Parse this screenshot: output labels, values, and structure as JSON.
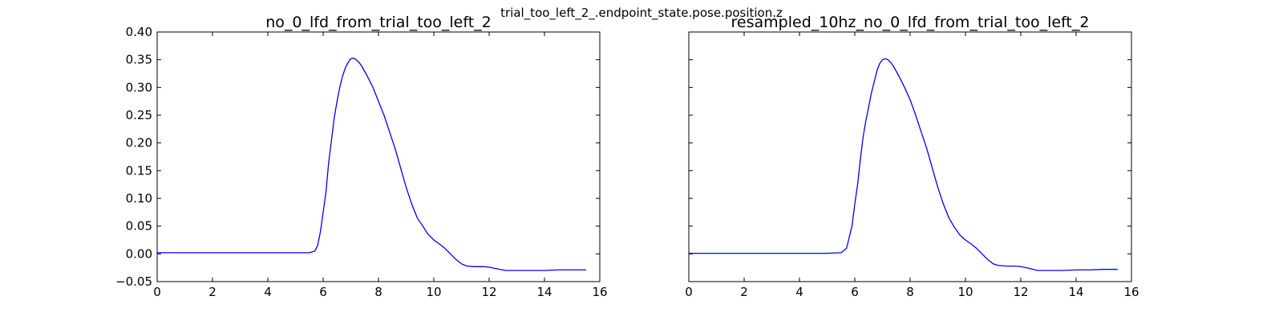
{
  "figure": {
    "suptitle": "trial_too_left_2_.endpoint_state.pose.position.z"
  },
  "chart_data": [
    {
      "type": "line",
      "title": "no_0_lfd_from_trial_too_left_2",
      "xlabel": "",
      "ylabel": "",
      "xlim": [
        0,
        16
      ],
      "ylim": [
        -0.05,
        0.4
      ],
      "xticks": [
        0,
        2,
        4,
        6,
        8,
        10,
        12,
        14,
        16
      ],
      "xtick_labels": [
        "0",
        "2",
        "4",
        "6",
        "8",
        "10",
        "12",
        "14",
        "16"
      ],
      "yticks": [
        -0.05,
        0.0,
        0.05,
        0.1,
        0.15,
        0.2,
        0.25,
        0.3,
        0.35,
        0.4
      ],
      "ytick_labels": [
        "−0.05",
        "0.00",
        "0.05",
        "0.10",
        "0.15",
        "0.20",
        "0.25",
        "0.30",
        "0.35",
        "0.40"
      ],
      "show_ytick_labels": true,
      "grid": false,
      "series": [
        {
          "color": "#0000ff",
          "x": [
            0,
            1,
            2,
            3,
            4,
            5,
            5.5,
            5.7,
            5.8,
            5.9,
            6.0,
            6.1,
            6.2,
            6.3,
            6.4,
            6.5,
            6.6,
            6.7,
            6.8,
            6.9,
            7.0,
            7.1,
            7.2,
            7.3,
            7.4,
            7.6,
            7.8,
            8.0,
            8.2,
            8.4,
            8.6,
            8.8,
            9.0,
            9.2,
            9.4,
            9.6,
            9.8,
            10.0,
            10.2,
            10.4,
            10.6,
            10.8,
            11.0,
            11.2,
            11.5,
            11.8,
            12.0,
            12.3,
            12.6,
            13.0,
            13.5,
            14.0,
            14.5,
            15.0,
            15.5
          ],
          "y": [
            0.002,
            0.002,
            0.002,
            0.002,
            0.002,
            0.002,
            0.002,
            0.005,
            0.015,
            0.04,
            0.075,
            0.11,
            0.165,
            0.205,
            0.245,
            0.275,
            0.3,
            0.32,
            0.335,
            0.345,
            0.352,
            0.353,
            0.35,
            0.345,
            0.338,
            0.32,
            0.3,
            0.275,
            0.25,
            0.22,
            0.19,
            0.155,
            0.12,
            0.09,
            0.065,
            0.05,
            0.035,
            0.025,
            0.018,
            0.01,
            0.0,
            -0.01,
            -0.018,
            -0.022,
            -0.023,
            -0.023,
            -0.024,
            -0.027,
            -0.03,
            -0.03,
            -0.03,
            -0.03,
            -0.029,
            -0.029,
            -0.029
          ]
        }
      ]
    },
    {
      "type": "line",
      "title": "resampled_10hz_no_0_lfd_from_trial_too_left_2",
      "xlabel": "",
      "ylabel": "",
      "xlim": [
        0,
        16
      ],
      "ylim": [
        -0.05,
        0.4
      ],
      "xticks": [
        0,
        2,
        4,
        6,
        8,
        10,
        12,
        14,
        16
      ],
      "xtick_labels": [
        "0",
        "2",
        "4",
        "6",
        "8",
        "10",
        "12",
        "14",
        "16"
      ],
      "yticks": [
        -0.05,
        0.0,
        0.05,
        0.1,
        0.15,
        0.2,
        0.25,
        0.3,
        0.35,
        0.4
      ],
      "ytick_labels": [],
      "show_ytick_labels": false,
      "grid": false,
      "series": [
        {
          "color": "#0000ff",
          "x": [
            0,
            1,
            2,
            3,
            4,
            5,
            5.5,
            5.7,
            5.8,
            5.9,
            6.0,
            6.1,
            6.2,
            6.3,
            6.4,
            6.5,
            6.6,
            6.7,
            6.8,
            6.9,
            7.0,
            7.1,
            7.2,
            7.3,
            7.4,
            7.6,
            7.8,
            8.0,
            8.2,
            8.4,
            8.6,
            8.8,
            9.0,
            9.2,
            9.4,
            9.6,
            9.8,
            10.0,
            10.2,
            10.4,
            10.6,
            10.8,
            11.0,
            11.2,
            11.5,
            11.8,
            12.0,
            12.3,
            12.6,
            13.0,
            13.5,
            14.0,
            14.5,
            15.0,
            15.5
          ],
          "y": [
            0.001,
            0.001,
            0.001,
            0.001,
            0.001,
            0.001,
            0.002,
            0.01,
            0.03,
            0.05,
            0.09,
            0.125,
            0.17,
            0.21,
            0.24,
            0.265,
            0.29,
            0.31,
            0.33,
            0.343,
            0.35,
            0.352,
            0.35,
            0.345,
            0.338,
            0.32,
            0.3,
            0.278,
            0.25,
            0.22,
            0.19,
            0.155,
            0.12,
            0.09,
            0.065,
            0.048,
            0.034,
            0.025,
            0.018,
            0.01,
            0.0,
            -0.01,
            -0.018,
            -0.021,
            -0.022,
            -0.022,
            -0.023,
            -0.026,
            -0.03,
            -0.03,
            -0.03,
            -0.029,
            -0.029,
            -0.028,
            -0.028
          ]
        }
      ]
    }
  ]
}
